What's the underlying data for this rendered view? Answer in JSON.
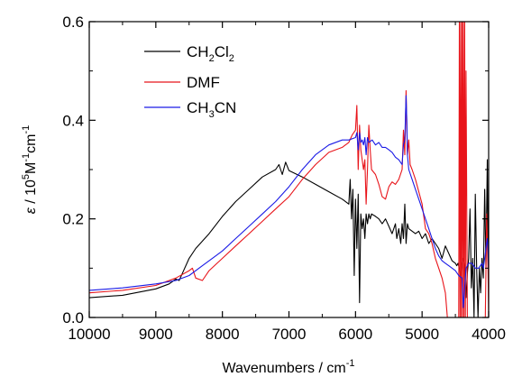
{
  "chart_data": {
    "type": "line",
    "title": "",
    "xlabel": {
      "base": "Wavenumbers / cm",
      "sup": "-1"
    },
    "ylabel": {
      "main": " / 10",
      "sup1": "5",
      "mid": "M",
      "sup2": "-1",
      "tail": "cm",
      "sup3": "-1",
      "symbol": "ε"
    },
    "xlim": [
      10000,
      4000
    ],
    "ylim": [
      0.0,
      0.6
    ],
    "x_ticks": [
      10000,
      9000,
      8000,
      7000,
      6000,
      5000,
      4000
    ],
    "x_tick_labels": [
      "10000",
      "9000",
      "8000",
      "7000",
      "6000",
      "5000",
      "4000"
    ],
    "y_ticks": [
      0.0,
      0.2,
      0.4,
      0.6
    ],
    "y_tick_labels": [
      "0.0",
      "0.2",
      "0.4",
      "0.6"
    ],
    "grid": false,
    "legend_position": "top-left",
    "series": [
      {
        "key": "ch2cl2",
        "legend": {
          "base": "CH",
          "s1": "2",
          "mid": "Cl",
          "s2": "2"
        },
        "color": "#000000",
        "x": [
          10000,
          9500,
          9000,
          8800,
          8700,
          8650,
          8600,
          8500,
          8400,
          8200,
          8000,
          7800,
          7600,
          7400,
          7200,
          7150,
          7100,
          7050,
          7000,
          6800,
          6600,
          6400,
          6200,
          6100,
          6080,
          6060,
          6040,
          6020,
          6000,
          5980,
          5960,
          5940,
          5920,
          5900,
          5880,
          5860,
          5840,
          5820,
          5800,
          5780,
          5760,
          5700,
          5650,
          5600,
          5550,
          5500,
          5450,
          5400,
          5380,
          5350,
          5320,
          5300,
          5280,
          5260,
          5240,
          5220,
          5200,
          5150,
          5100,
          5050,
          5000,
          4950,
          4900,
          4850,
          4800,
          4750,
          4700,
          4650,
          4600,
          4550,
          4500,
          4480,
          4460,
          4440,
          4420,
          4400,
          4380,
          4360,
          4340,
          4320,
          4300,
          4280,
          4260,
          4240,
          4220,
          4200,
          4180,
          4160,
          4140,
          4120,
          4100,
          4080,
          4060,
          4040,
          4020,
          4010,
          4000
        ],
        "y": [
          0.04,
          0.045,
          0.058,
          0.068,
          0.078,
          0.075,
          0.09,
          0.12,
          0.14,
          0.17,
          0.205,
          0.235,
          0.26,
          0.285,
          0.3,
          0.31,
          0.29,
          0.315,
          0.298,
          0.285,
          0.27,
          0.255,
          0.24,
          0.23,
          0.28,
          0.2,
          0.26,
          0.085,
          0.24,
          0.14,
          0.25,
          0.03,
          0.21,
          0.18,
          0.2,
          0.16,
          0.21,
          0.19,
          0.21,
          0.2,
          0.21,
          0.205,
          0.2,
          0.19,
          0.2,
          0.185,
          0.17,
          0.19,
          0.16,
          0.18,
          0.15,
          0.19,
          0.16,
          0.23,
          0.15,
          0.19,
          0.18,
          0.175,
          0.17,
          0.175,
          0.16,
          0.17,
          0.15,
          0.16,
          0.15,
          0.14,
          0.12,
          0.145,
          0.13,
          0.115,
          0.11,
          0.105,
          0.11,
          0.1,
          0.085,
          0.11,
          0.12,
          0.1,
          0.04,
          0.09,
          0.12,
          0.22,
          0.06,
          0.12,
          0.0,
          0.25,
          0.1,
          0.0,
          0.1,
          0.05,
          0.12,
          0.08,
          0.26,
          0.1,
          0.32,
          0.15,
          0.1
        ]
      },
      {
        "key": "dmf",
        "legend": {
          "text": "DMF"
        },
        "color": "#e8141a",
        "x": [
          10000,
          9500,
          9000,
          8700,
          8500,
          8450,
          8400,
          8300,
          8200,
          8000,
          7800,
          7600,
          7400,
          7200,
          7000,
          6800,
          6600,
          6400,
          6200,
          6100,
          6050,
          6000,
          5980,
          5960,
          5940,
          5920,
          5900,
          5880,
          5860,
          5840,
          5820,
          5800,
          5780,
          5760,
          5700,
          5650,
          5600,
          5550,
          5500,
          5450,
          5400,
          5350,
          5300,
          5280,
          5260,
          5240,
          5220,
          5200,
          5180,
          5150,
          5100,
          5000,
          4950,
          4900,
          4850,
          4800,
          4750,
          4700,
          4650,
          4620,
          4600,
          4580,
          4560,
          4540,
          4500,
          4470,
          4450,
          4440,
          4430,
          4420,
          4410,
          4400,
          4390,
          4380,
          4370,
          4360,
          4350,
          4340,
          4320,
          4300,
          4250,
          4200,
          4150,
          4100,
          4050,
          4030,
          4020,
          4010,
          4000
        ],
        "y": [
          0.05,
          0.055,
          0.065,
          0.08,
          0.095,
          0.1,
          0.08,
          0.075,
          0.095,
          0.12,
          0.145,
          0.17,
          0.195,
          0.22,
          0.245,
          0.28,
          0.31,
          0.335,
          0.345,
          0.355,
          0.37,
          0.38,
          0.43,
          0.3,
          0.39,
          0.34,
          0.32,
          0.3,
          0.32,
          0.23,
          0.3,
          0.39,
          0.34,
          0.3,
          0.29,
          0.27,
          0.245,
          0.24,
          0.265,
          0.275,
          0.27,
          0.28,
          0.3,
          0.38,
          0.33,
          0.46,
          0.33,
          0.36,
          0.31,
          0.3,
          0.28,
          0.23,
          0.18,
          0.17,
          0.15,
          0.12,
          0.1,
          0.08,
          0.05,
          0.0,
          0.0,
          0.0,
          0.0,
          0.0,
          0.0,
          0.0,
          0.0,
          0.6,
          0.0,
          0.6,
          0.0,
          0.6,
          0.0,
          0.6,
          0.0,
          0.6,
          0.0,
          0.5,
          0.0,
          0.0,
          0.0,
          0.0,
          0.0,
          0.0,
          0.0,
          0.21,
          0.15,
          0.1,
          0.0
        ]
      },
      {
        "key": "ch3cn",
        "legend": {
          "base": "CH",
          "s1": "3",
          "mid": "CN"
        },
        "color": "#1a1ae6",
        "x": [
          10000,
          9500,
          9000,
          8700,
          8500,
          8300,
          8100,
          8000,
          7800,
          7600,
          7400,
          7200,
          7000,
          6800,
          6600,
          6400,
          6200,
          6100,
          6000,
          5980,
          5960,
          5940,
          5920,
          5900,
          5880,
          5860,
          5840,
          5820,
          5800,
          5750,
          5700,
          5650,
          5600,
          5550,
          5500,
          5450,
          5400,
          5350,
          5300,
          5280,
          5260,
          5240,
          5230,
          5220,
          5200,
          5150,
          5100,
          5050,
          5000,
          4950,
          4900,
          4850,
          4800,
          4750,
          4700,
          4650,
          4600,
          4550,
          4500,
          4450,
          4400,
          4380,
          4360,
          4340,
          4300,
          4250,
          4200,
          4150,
          4100,
          4080,
          4060,
          4040,
          4020,
          4010,
          4000
        ],
        "y": [
          0.055,
          0.06,
          0.068,
          0.075,
          0.085,
          0.105,
          0.125,
          0.135,
          0.16,
          0.185,
          0.21,
          0.235,
          0.265,
          0.3,
          0.33,
          0.35,
          0.36,
          0.36,
          0.365,
          0.375,
          0.34,
          0.375,
          0.355,
          0.36,
          0.35,
          0.365,
          0.33,
          0.365,
          0.355,
          0.36,
          0.35,
          0.355,
          0.345,
          0.345,
          0.34,
          0.335,
          0.325,
          0.32,
          0.31,
          0.35,
          0.36,
          0.45,
          0.4,
          0.33,
          0.3,
          0.28,
          0.26,
          0.24,
          0.22,
          0.2,
          0.18,
          0.16,
          0.14,
          0.125,
          0.115,
          0.11,
          0.105,
          0.1,
          0.095,
          0.085,
          0.08,
          0.02,
          0.06,
          0.1,
          0.11,
          0.11,
          0.1,
          0.1,
          0.11,
          0.1,
          0.12,
          0.14,
          0.16,
          0.14,
          0.1
        ]
      }
    ]
  }
}
